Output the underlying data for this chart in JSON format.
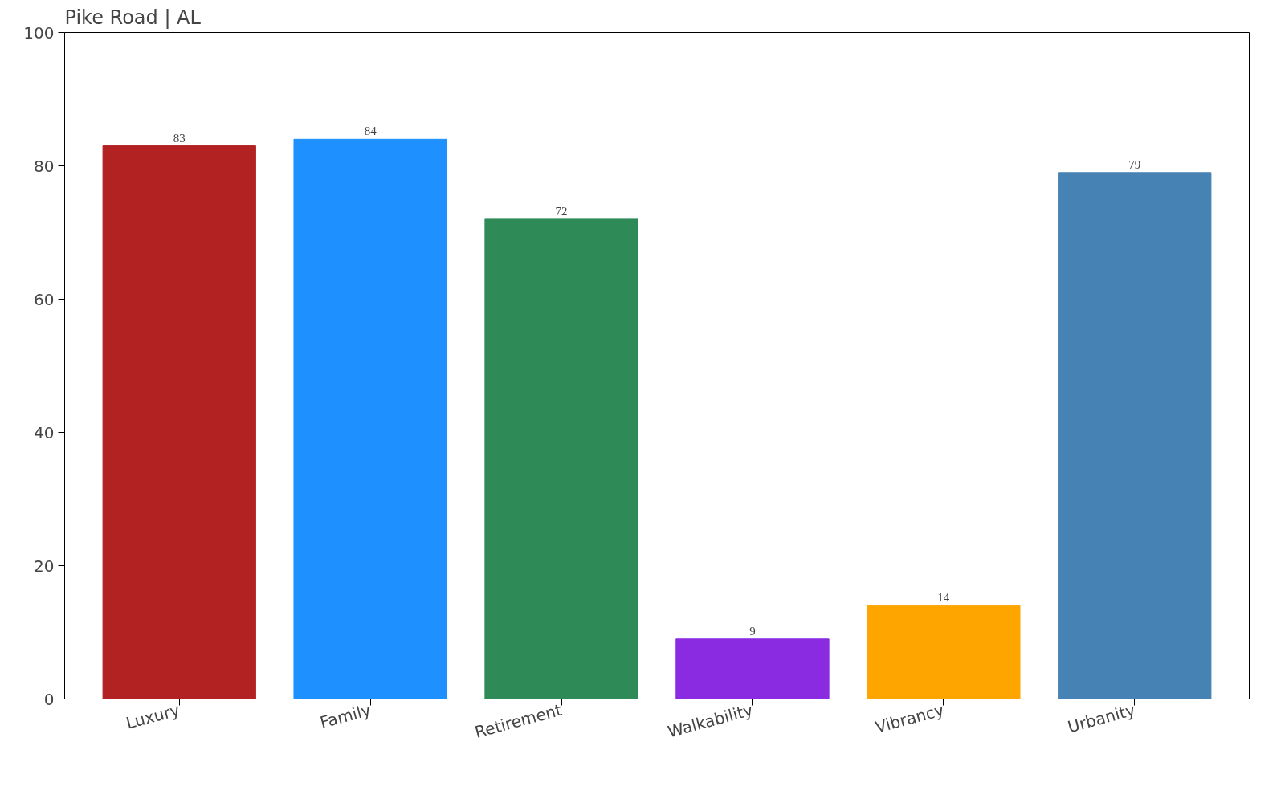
{
  "chart_data": {
    "type": "bar",
    "title": "Pike Road | AL",
    "categories": [
      "Luxury",
      "Family",
      "Retirement",
      "Walkability",
      "Vibrancy",
      "Urbanity"
    ],
    "values": [
      83,
      84,
      72,
      9,
      14,
      79
    ],
    "colors": [
      "#b22222",
      "#1e90ff",
      "#2e8b57",
      "#8a2be2",
      "#ffa500",
      "#4682b4"
    ],
    "ylim": [
      0,
      100
    ],
    "yticks": [
      0,
      20,
      40,
      60,
      80,
      100
    ],
    "grid": false,
    "data_labels": true
  }
}
